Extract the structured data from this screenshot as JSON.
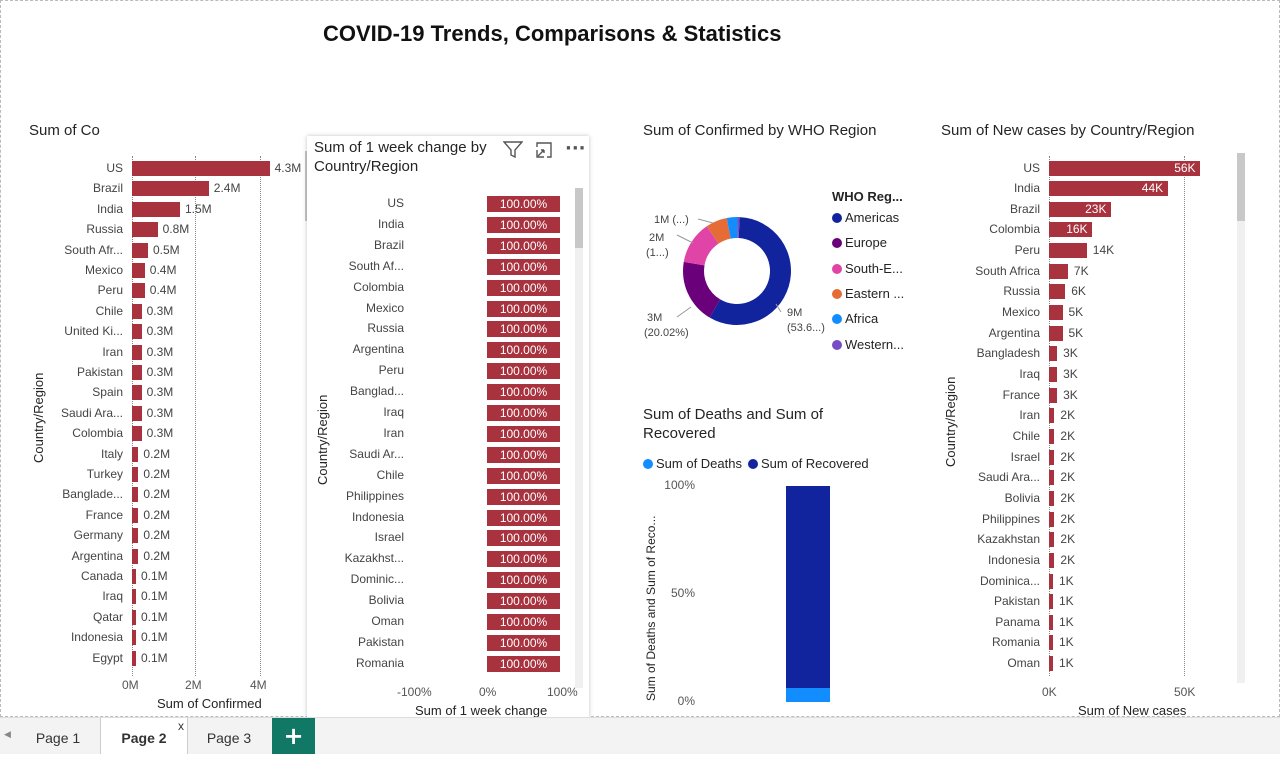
{
  "report_title": "COVID-19 Trends, Comparisons & Statistics",
  "chart_data": [
    {
      "type": "bar",
      "orientation": "horizontal",
      "title": "Sum of Confirmed by Country/Region",
      "title_visible": "Sum of Co",
      "xlabel": "Sum of Confirmed",
      "ylabel": "Country/Region",
      "xticks": [
        "0M",
        "2M",
        "4M"
      ],
      "xlim": [
        0,
        4500000
      ],
      "categories": [
        "US",
        "Brazil",
        "India",
        "Russia",
        "South Afr...",
        "Mexico",
        "Peru",
        "Chile",
        "United Ki...",
        "Iran",
        "Pakistan",
        "Spain",
        "Saudi Ara...",
        "Colombia",
        "Italy",
        "Turkey",
        "Banglade...",
        "France",
        "Germany",
        "Argentina",
        "Canada",
        "Iraq",
        "Qatar",
        "Indonesia",
        "Egypt"
      ],
      "values": [
        4300000,
        2400000,
        1500000,
        800000,
        500000,
        400000,
        400000,
        300000,
        300000,
        300000,
        300000,
        300000,
        300000,
        300000,
        200000,
        200000,
        200000,
        200000,
        200000,
        200000,
        100000,
        100000,
        100000,
        100000,
        100000
      ],
      "labels": [
        "4.3M",
        "2.4M",
        "1.5M",
        "0.8M",
        "0.5M",
        "0.4M",
        "0.4M",
        "0.3M",
        "0.3M",
        "0.3M",
        "0.3M",
        "0.3M",
        "0.3M",
        "0.3M",
        "0.2M",
        "0.2M",
        "0.2M",
        "0.2M",
        "0.2M",
        "0.2M",
        "0.1M",
        "0.1M",
        "0.1M",
        "0.1M",
        "0.1M"
      ]
    },
    {
      "type": "bar",
      "orientation": "horizontal",
      "title": "Sum of 1 week change by Country/Region",
      "title_line1": "Sum of 1 week change by",
      "title_line2": "Country/Region",
      "xlabel": "Sum of 1 week change",
      "ylabel": "Country/Region",
      "xticks": [
        "-100%",
        "0%",
        "100%"
      ],
      "categories": [
        "US",
        "India",
        "Brazil",
        "South Af...",
        "Colombia",
        "Mexico",
        "Russia",
        "Argentina",
        "Peru",
        "Banglad...",
        "Iraq",
        "Iran",
        "Saudi Ar...",
        "Chile",
        "Philippines",
        "Indonesia",
        "Israel",
        "Kazakhst...",
        "Dominic...",
        "Bolivia",
        "Oman",
        "Pakistan",
        "Romania"
      ],
      "values": [
        100,
        100,
        100,
        100,
        100,
        100,
        100,
        100,
        100,
        100,
        100,
        100,
        100,
        100,
        100,
        100,
        100,
        100,
        100,
        100,
        100,
        100,
        100
      ],
      "label": "100.00%"
    },
    {
      "type": "pie",
      "variant": "donut",
      "title": "Sum of Confirmed by WHO Region",
      "legend_title": "WHO Reg...",
      "categories": [
        "Americas",
        "Europe",
        "South-E...",
        "Eastern ...",
        "Africa",
        "Western..."
      ],
      "values": [
        9000000,
        3000000,
        2000000,
        1000000,
        500000,
        100000
      ],
      "colors": [
        "#12239e",
        "#6b007b",
        "#e044a7",
        "#e66c37",
        "#118dff",
        "#744ec2"
      ],
      "labels": [
        {
          "line1": "9M",
          "line2": "(53.6...)"
        },
        {
          "line1": "3M",
          "line2": "(20.02%)"
        },
        {
          "line1": "2M",
          "line2": "(1...)"
        },
        {
          "line1": "1M (...)",
          "line2": ""
        }
      ]
    },
    {
      "type": "bar",
      "variant": "100% stacked column",
      "title": "Sum of Deaths and Sum of Recovered",
      "title_line1": "Sum of Deaths and Sum of",
      "title_line2": "Recovered",
      "ylabel": "Sum of Deaths and Sum of Reco...",
      "yticks": [
        "100%",
        "50%",
        "0%"
      ],
      "series": [
        {
          "name": "Sum of Deaths",
          "values": [
            6.5
          ],
          "color": "#118dff"
        },
        {
          "name": "Sum of Recovered",
          "values": [
            93.5
          ],
          "color": "#12239e"
        }
      ]
    },
    {
      "type": "bar",
      "orientation": "horizontal",
      "title": "Sum of New cases by Country/Region",
      "xlabel": "Sum of New cases",
      "ylabel": "Country/Region",
      "xticks": [
        "0K",
        "50K"
      ],
      "xlim": [
        0,
        58000
      ],
      "categories": [
        "US",
        "India",
        "Brazil",
        "Colombia",
        "Peru",
        "South Africa",
        "Russia",
        "Mexico",
        "Argentina",
        "Bangladesh",
        "Iraq",
        "France",
        "Iran",
        "Chile",
        "Israel",
        "Saudi Ara...",
        "Bolivia",
        "Philippines",
        "Kazakhstan",
        "Indonesia",
        "Dominica...",
        "Pakistan",
        "Panama",
        "Romania",
        "Oman"
      ],
      "values": [
        56000,
        44000,
        23000,
        16000,
        14000,
        7000,
        6000,
        5000,
        5000,
        3000,
        3000,
        3000,
        2000,
        2000,
        2000,
        2000,
        2000,
        2000,
        2000,
        2000,
        1000,
        1000,
        1000,
        1000,
        1000
      ],
      "labels": [
        "56K",
        "44K",
        "23K",
        "16K",
        "14K",
        "7K",
        "6K",
        "5K",
        "5K",
        "3K",
        "3K",
        "3K",
        "2K",
        "2K",
        "2K",
        "2K",
        "2K",
        "2K",
        "2K",
        "2K",
        "1K",
        "1K",
        "1K",
        "1K",
        "1K"
      ]
    }
  ],
  "visual_header": {
    "filter_icon": "filter-icon",
    "focus_icon": "focus-mode-icon",
    "more_icon": "more-options-icon",
    "more_label": "···"
  },
  "tabs": [
    {
      "label": "Page 1"
    },
    {
      "label": "Page 2",
      "close": "x"
    },
    {
      "label": "Page 3"
    }
  ],
  "add_tab_label": "+",
  "colors": {
    "bar": "#a8323e",
    "accent_tab": "#117865"
  }
}
